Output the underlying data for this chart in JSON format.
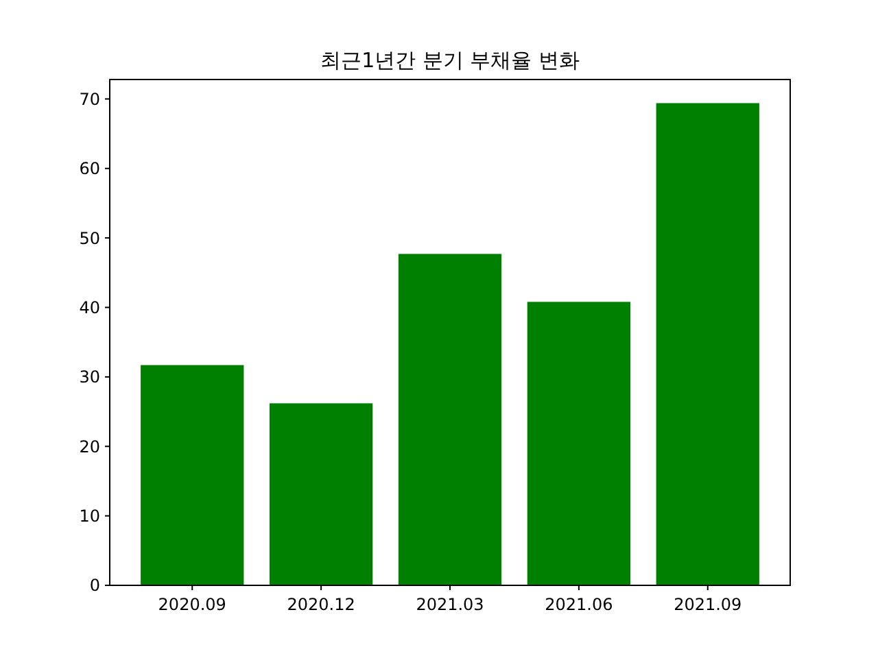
{
  "chart_data": {
    "type": "bar",
    "title": "최근1년간 분기 부채율 변화",
    "categories": [
      "2020.09",
      "2020.12",
      "2021.03",
      "2021.06",
      "2021.09"
    ],
    "values": [
      31.7,
      26.2,
      47.7,
      40.8,
      69.4
    ],
    "color": "#008000",
    "ylim": [
      0,
      72.8
    ],
    "yticks": [
      0,
      10,
      20,
      30,
      40,
      50,
      60,
      70
    ],
    "grid": false
  }
}
